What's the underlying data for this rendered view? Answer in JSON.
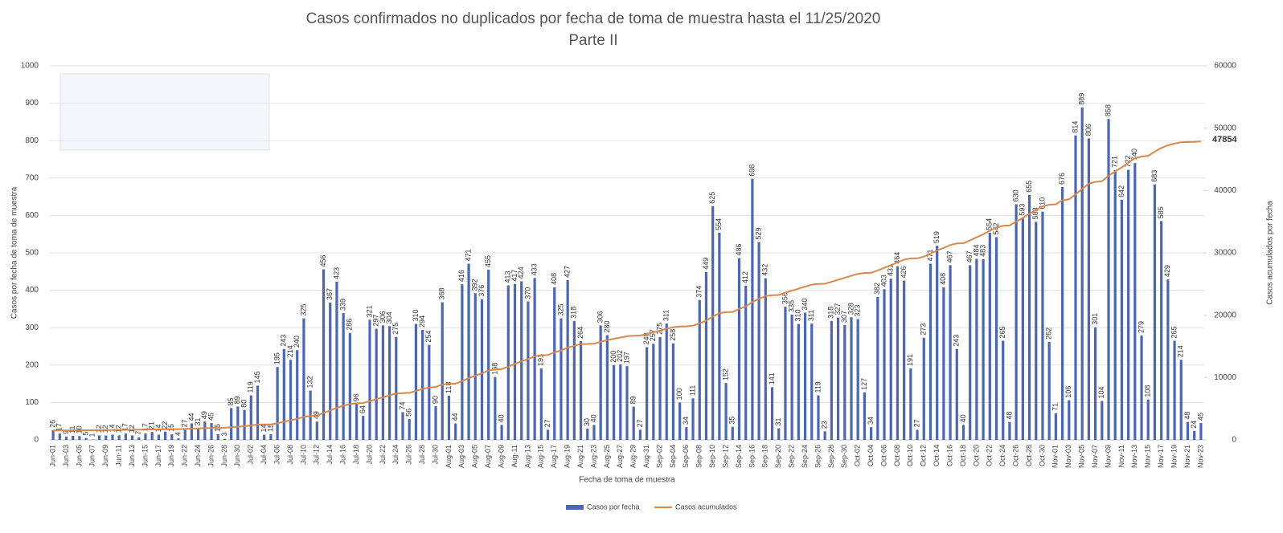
{
  "chart_data": {
    "type": "bar",
    "title": "Casos confirmados no duplicados por fecha de toma de muestra hasta el 11/25/2020",
    "subtitle": "Parte II",
    "x_label": "Fecha de toma de muestra",
    "y_label": "Casos por fecha de toma de muestra",
    "y2_label": "Casos acumulados por fecha",
    "ylim": [
      0,
      1000
    ],
    "yticks": [
      0,
      100,
      200,
      300,
      400,
      500,
      600,
      700,
      800,
      900,
      1000
    ],
    "y2lim": [
      0,
      60000
    ],
    "y2ticks": [
      0,
      10000,
      20000,
      30000,
      40000,
      50000,
      60000
    ],
    "grid": true,
    "legend": "bottom",
    "categories": [
      "Jun-01",
      null,
      "Jun-03",
      null,
      "Jun-05",
      null,
      "Jun-07",
      null,
      "Jun-09",
      null,
      "Jun-11",
      null,
      "Jun-13",
      null,
      "Jun-15",
      null,
      "Jun-17",
      null,
      "Jun-19",
      null,
      "Jun-22",
      null,
      "Jun-24",
      null,
      "Jun-26",
      null,
      "Jun-28",
      null,
      "Jun-30",
      null,
      "Jul-02",
      null,
      "Jul-04",
      null,
      "Jul-06",
      null,
      "Jul-08",
      null,
      "Jul-10",
      null,
      "Jul-12",
      null,
      "Jul-14",
      null,
      "Jul-16",
      null,
      "Jul-18",
      null,
      "Jul-20",
      null,
      "Jul-22",
      null,
      "Jul-24",
      null,
      "Jul-26",
      null,
      "Jul-28",
      null,
      "Jul-30",
      null,
      "Aug-01",
      null,
      "Aug-03",
      null,
      "Aug-05",
      null,
      "Aug-07",
      null,
      "Aug-09",
      null,
      "Aug-11",
      null,
      "Aug-13",
      null,
      "Aug-15",
      null,
      "Aug-17",
      null,
      "Aug-19",
      null,
      "Aug-21",
      null,
      "Aug-23",
      null,
      "Aug-25",
      null,
      "Aug-27",
      null,
      "Aug-29",
      null,
      "Aug-31",
      null,
      "Sep-02",
      null,
      "Sep-04",
      null,
      "Sep-06",
      null,
      "Sep-08",
      null,
      "Sep-10",
      null,
      "Sep-12",
      null,
      "Sep-14",
      null,
      "Sep-16",
      null,
      "Sep-18",
      null,
      "Sep-20",
      null,
      "Sep-22",
      null,
      "Sep-24",
      null,
      "Sep-26",
      null,
      "Sep-28",
      null,
      "Sep-30",
      null,
      "Oct-02",
      null,
      "Oct-04",
      null,
      "Oct-06",
      null,
      "Oct-08",
      null,
      "Oct-10",
      null,
      "Oct-12",
      null,
      "Oct-14",
      null,
      "Oct-16",
      null,
      "Oct-18",
      null,
      "Oct-20",
      null,
      "Oct-22",
      null,
      "Oct-24",
      null,
      "Oct-26",
      null,
      "Oct-28",
      null,
      "Oct-30",
      null,
      "Nov-01",
      null,
      "Nov-03",
      null,
      "Nov-05",
      null,
      "Nov-07",
      null,
      "Nov-09",
      null,
      "Nov-11",
      null,
      "Nov-13",
      null,
      "Nov-15",
      null,
      "Nov-17",
      null,
      "Nov-19",
      null,
      "Nov-21",
      null,
      "Nov-23"
    ],
    "series": [
      {
        "name": "Casos por fecha",
        "color": "#4a66b8",
        "values": [
          26,
          17,
          9,
          11,
          10,
          5,
          1,
          12,
          12,
          14,
          12,
          17,
          12,
          7,
          17,
          21,
          14,
          22,
          15,
          4,
          27,
          44,
          31,
          49,
          45,
          15,
          3,
          85,
          89,
          80,
          119,
          145,
          14,
          15,
          195,
          243,
          214,
          240,
          325,
          132,
          49,
          456,
          367,
          423,
          339,
          286,
          96,
          64,
          321,
          297,
          306,
          304,
          275,
          74,
          56,
          310,
          294,
          254,
          90,
          368,
          118,
          44,
          416,
          471,
          392,
          376,
          455,
          168,
          40,
          413,
          417,
          424,
          370,
          433,
          191,
          27,
          408,
          325,
          427,
          318,
          264,
          30,
          40,
          306,
          280,
          200,
          202,
          197,
          89,
          27,
          248,
          257,
          275,
          311,
          258,
          100,
          34,
          111,
          374,
          449,
          625,
          554,
          152,
          35,
          486,
          412,
          698,
          529,
          432,
          141,
          31,
          356,
          335,
          310,
          340,
          311,
          119,
          23,
          318,
          327,
          307,
          328,
          323,
          127,
          34,
          382,
          403,
          431,
          464,
          426,
          191,
          27,
          273,
          471,
          519,
          408,
          467,
          243,
          40,
          467,
          484,
          483,
          554,
          542,
          265,
          48,
          630,
          593,
          655,
          583,
          610,
          262,
          71,
          676,
          106,
          814,
          889,
          806,
          301,
          104,
          858,
          721,
          642,
          722,
          740,
          279,
          108,
          683,
          585,
          429,
          265,
          214,
          48,
          24,
          45
        ]
      },
      {
        "name": "Casos acumulados",
        "color": "#d9894a",
        "axis": "y2",
        "values": [
          1494,
          1511,
          1520,
          1531,
          1541,
          1546,
          1547,
          1559,
          1571,
          1585,
          1597,
          1614,
          1626,
          1633,
          1650,
          1671,
          1685,
          1707,
          1722,
          1726,
          1753,
          1797,
          1828,
          1877,
          1922,
          1937,
          1940,
          2025,
          2114,
          2194,
          2313,
          2458,
          2472,
          2487,
          2682,
          2925,
          3139,
          3379,
          3704,
          3836,
          3885,
          4341,
          4708,
          5131,
          5470,
          5756,
          5852,
          5916,
          6237,
          6534,
          6840,
          7144,
          7419,
          7493,
          7549,
          7859,
          8153,
          8407,
          8497,
          8865,
          8983,
          9027,
          9443,
          9914,
          10306,
          10682,
          11137,
          11305,
          11345,
          11758,
          12175,
          12599,
          12969,
          13402,
          13593,
          13620,
          14028,
          14353,
          14780,
          15098,
          15362,
          15392,
          15432,
          15738,
          16018,
          16218,
          16420,
          16617,
          16706,
          16733,
          16981,
          17238,
          17513,
          17824,
          18082,
          18182,
          18216,
          18327,
          18701,
          19150,
          19775,
          20329,
          20481,
          20516,
          21002,
          21414,
          22112,
          22641,
          23073,
          23214,
          23245,
          23601,
          23936,
          24246,
          24586,
          24897,
          25016,
          25039,
          25357,
          25684,
          25991,
          26319,
          26642,
          26769,
          26803,
          27185,
          27588,
          28019,
          28483,
          28909,
          29100,
          29127,
          29400,
          29871,
          30390,
          30798,
          31265,
          31508,
          31548,
          32015,
          32499,
          32982,
          33536,
          34078,
          34343,
          34391,
          35021,
          35614,
          36269,
          36852,
          37462,
          37724,
          37795,
          38471,
          38577,
          39391,
          40280,
          41086,
          41387,
          41491,
          42349,
          43070,
          43712,
          44434,
          45174,
          45453,
          45561,
          46244,
          46829,
          47258,
          47523,
          47737,
          47785,
          47809,
          47854
        ]
      }
    ]
  }
}
